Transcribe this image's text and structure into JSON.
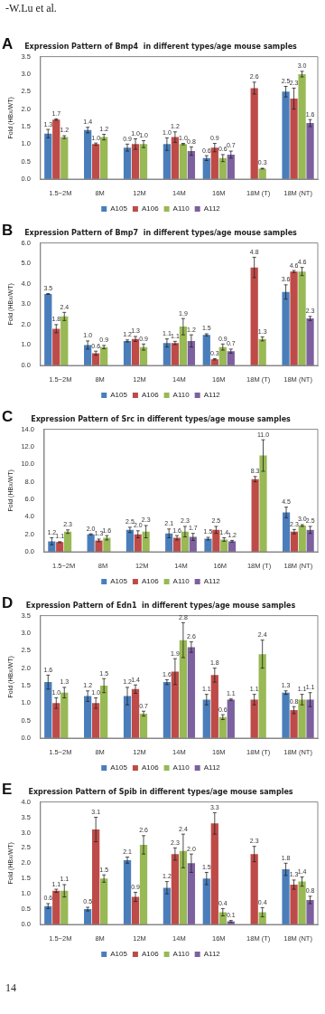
{
  "chart_data": [
    {
      "type": "bar",
      "title": "Expression Pattern of Bmp4  in different types/age mouse samples",
      "ylabel": "Fold (HBx/WT)",
      "annotations": [
        "A",
        "-W.Lu et al."
      ],
      "categories": [
        "1.5~2M",
        "8M",
        "12M",
        "14M",
        "16M",
        "18M (T)",
        "18M (NT)"
      ],
      "legend": "bottom",
      "grid": false,
      "ylim": [
        0,
        3.5
      ],
      "yticks": [
        {
          "value": 0,
          "label": "0.0"
        },
        {
          "value": 0.5,
          "label": "0.5"
        },
        {
          "value": 1,
          "label": "1.0"
        },
        {
          "value": 1.5,
          "label": "1.5"
        },
        {
          "value": 2,
          "label": "2.0"
        },
        {
          "value": 2.5,
          "label": "2.5"
        },
        {
          "value": 3,
          "label": "3.0"
        },
        {
          "value": 3.5,
          "label": "3.5"
        }
      ],
      "series": [
        {
          "name": "A105",
          "color": "#4a7ebb",
          "values": [
            1.3,
            1.4,
            0.9,
            1.0,
            0.6,
            null,
            2.5
          ],
          "errors": [
            0.12,
            0.08,
            0.1,
            0.18,
            0.07,
            null,
            0.15
          ],
          "value_labels": [
            "1.3",
            "1.4",
            "0.9",
            "1.0",
            "0.6",
            null,
            "2.5"
          ]
        },
        {
          "name": "A106",
          "color": "#be4b48",
          "values": [
            1.7,
            1.0,
            1.0,
            1.2,
            0.9,
            2.6,
            2.3
          ],
          "errors": [
            0.02,
            0.03,
            0.15,
            0.15,
            0.12,
            0.17,
            0.3
          ],
          "value_labels": [
            "1.7",
            "1.0",
            "1.0",
            "1.2",
            "0.9",
            "2.6",
            "2.3"
          ]
        },
        {
          "name": "A110",
          "color": "#98b954",
          "values": [
            1.2,
            1.2,
            1.0,
            1.0,
            0.6,
            0.3,
            3.0
          ],
          "errors": [
            0.04,
            0.08,
            0.1,
            0.02,
            0.1,
            0.01,
            0.08
          ],
          "value_labels": [
            "1.2",
            "1.2",
            "1.0",
            "1.0",
            "0.6",
            "0.3",
            "3.0"
          ]
        },
        {
          "name": "A112",
          "color": "#7d60a0",
          "values": [
            null,
            null,
            null,
            0.8,
            0.7,
            null,
            1.6
          ],
          "errors": [
            null,
            null,
            null,
            0.12,
            0.1,
            null,
            0.1
          ],
          "value_labels": [
            null,
            null,
            null,
            "0.8",
            "0.7",
            null,
            "1.6"
          ]
        }
      ]
    },
    {
      "type": "bar",
      "title": "Expression Pattern of Bmp7  in different types/age mouse samples",
      "ylabel": "Fold (HBx/WT)",
      "annotations": [
        "B"
      ],
      "categories": [
        "1.5~2M",
        "8M",
        "12M",
        "14M",
        "16M",
        "18M (T)",
        "18M (NT)"
      ],
      "legend": "bottom",
      "grid": false,
      "ylim": [
        0,
        6
      ],
      "yticks": [
        {
          "value": 0,
          "label": "0.0"
        },
        {
          "value": 1,
          "label": "1.0"
        },
        {
          "value": 2,
          "label": "2.0"
        },
        {
          "value": 3,
          "label": "3.0"
        },
        {
          "value": 4,
          "label": "4.0"
        },
        {
          "value": 5,
          "label": "5.0"
        },
        {
          "value": 6,
          "label": "6.0"
        }
      ],
      "series": [
        {
          "name": "A105",
          "color": "#4a7ebb",
          "values": [
            3.5,
            1.0,
            1.2,
            1.1,
            1.5,
            null,
            3.6
          ],
          "errors": [
            0.02,
            0.2,
            0.05,
            0.2,
            0.05,
            null,
            0.35
          ],
          "value_labels": [
            "3.5",
            "1.0",
            "1.2",
            "1.1",
            "1.5",
            null,
            "3.6"
          ]
        },
        {
          "name": "A106",
          "color": "#be4b48",
          "values": [
            1.8,
            0.6,
            1.3,
            1.1,
            0.3,
            4.8,
            4.6
          ],
          "errors": [
            0.2,
            0.1,
            0.12,
            0.08,
            0.03,
            0.5,
            0.05
          ],
          "value_labels": [
            "1.8",
            "0.6",
            "1.3",
            "1.1",
            "0.3",
            "4.8",
            "4.6"
          ]
        },
        {
          "name": "A110",
          "color": "#98b954",
          "values": [
            2.4,
            0.9,
            0.9,
            1.9,
            0.9,
            1.3,
            4.6
          ],
          "errors": [
            0.2,
            0.08,
            0.15,
            0.4,
            0.15,
            0.1,
            0.2
          ],
          "value_labels": [
            "2.4",
            "0.9",
            "0.9",
            "1.9",
            "0.9",
            "1.3",
            "4.6"
          ]
        },
        {
          "name": "A112",
          "color": "#7d60a0",
          "values": [
            null,
            null,
            null,
            1.2,
            0.7,
            null,
            2.3
          ],
          "errors": [
            null,
            null,
            null,
            0.3,
            0.1,
            null,
            0.1
          ],
          "value_labels": [
            null,
            null,
            null,
            "1.2",
            "0.7",
            null,
            "2.3"
          ]
        }
      ]
    },
    {
      "type": "bar",
      "title": "Expression Pattern of Src in different types/age mouse samples",
      "ylabel": "Fold (HBx/WT)",
      "annotations": [
        "C"
      ],
      "categories": [
        "1.5~2M",
        "8M",
        "12M",
        "14M",
        "16M",
        "18M (T)",
        "18M (NT)"
      ],
      "legend": "bottom",
      "grid": false,
      "ylim": [
        0,
        14
      ],
      "yticks": [
        {
          "value": 0,
          "label": "0.0"
        },
        {
          "value": 2,
          "label": "2.0"
        },
        {
          "value": 4,
          "label": "4.0"
        },
        {
          "value": 6,
          "label": "6.0"
        },
        {
          "value": 8,
          "label": "8.0"
        },
        {
          "value": 10,
          "label": "10.0"
        },
        {
          "value": 12,
          "label": "12.0"
        },
        {
          "value": 14,
          "label": "14.0"
        }
      ],
      "series": [
        {
          "name": "A105",
          "color": "#4a7ebb",
          "values": [
            1.2,
            2.0,
            2.5,
            2.1,
            1.5,
            null,
            4.5
          ],
          "errors": [
            0.4,
            0.05,
            0.3,
            0.5,
            0.15,
            null,
            0.6
          ],
          "value_labels": [
            "1.2",
            "2.0",
            "2.5",
            "2.1",
            "1.5",
            null,
            "4.5"
          ]
        },
        {
          "name": "A106",
          "color": "#be4b48",
          "values": [
            1.1,
            1.3,
            2.0,
            1.6,
            2.5,
            8.3,
            2.3
          ],
          "errors": [
            0.05,
            0.15,
            0.4,
            0.25,
            0.4,
            0.3,
            0.25
          ],
          "value_labels": [
            "1.1",
            "1.3",
            "2.0",
            "1.6",
            "2.5",
            "8.3",
            "2.3"
          ]
        },
        {
          "name": "A110",
          "color": "#98b954",
          "values": [
            2.3,
            1.6,
            2.3,
            2.3,
            1.4,
            11.0,
            3.0
          ],
          "errors": [
            0.2,
            0.25,
            0.7,
            0.6,
            0.2,
            1.8,
            0.1
          ],
          "value_labels": [
            "2.3",
            "1.6",
            "2.3",
            "2.3",
            "1.4",
            "11.0",
            "3.0"
          ]
        },
        {
          "name": "A112",
          "color": "#7d60a0",
          "values": [
            null,
            null,
            null,
            1.7,
            1.2,
            null,
            2.5
          ],
          "errors": [
            null,
            null,
            null,
            0.4,
            0.1,
            null,
            0.4
          ],
          "value_labels": [
            null,
            null,
            null,
            "1.7",
            "1.2",
            null,
            "2.5"
          ]
        }
      ]
    },
    {
      "type": "bar",
      "title": "Expression Pattern of Edn1  in different types/age mouse samples",
      "ylabel": "Fold (HBx/WT)",
      "annotations": [
        "D"
      ],
      "categories": [
        "1.5~2M",
        "8M",
        "12M",
        "14M",
        "16M",
        "18M (T)",
        "18M (NT)"
      ],
      "legend": "bottom",
      "grid": false,
      "ylim": [
        0,
        3.5
      ],
      "yticks": [
        {
          "value": 0,
          "label": "0.0"
        },
        {
          "value": 0.5,
          "label": "0.5"
        },
        {
          "value": 1,
          "label": "1.0"
        },
        {
          "value": 1.5,
          "label": "1.5"
        },
        {
          "value": 2,
          "label": "2.0"
        },
        {
          "value": 2.5,
          "label": "2.5"
        },
        {
          "value": 3,
          "label": "3.0"
        },
        {
          "value": 3.5,
          "label": "3.5"
        }
      ],
      "series": [
        {
          "name": "A105",
          "color": "#4a7ebb",
          "values": [
            1.6,
            1.2,
            1.2,
            1.6,
            1.1,
            null,
            1.3
          ],
          "errors": [
            0.2,
            0.15,
            0.25,
            0.07,
            0.15,
            null,
            0.05
          ],
          "value_labels": [
            "1.6",
            "1.2",
            "1.2",
            "1.6",
            "1.1",
            null,
            "1.3"
          ]
        },
        {
          "name": "A106",
          "color": "#be4b48",
          "values": [
            1.0,
            1.0,
            1.4,
            1.9,
            1.8,
            1.1,
            0.8
          ],
          "errors": [
            0.15,
            0.15,
            0.12,
            0.37,
            0.2,
            0.15,
            0.1
          ],
          "value_labels": [
            "1.0",
            "1.0",
            "1.4",
            "1.9",
            "1.8",
            "1.1",
            "0.8"
          ]
        },
        {
          "name": "A110",
          "color": "#98b954",
          "values": [
            1.3,
            1.5,
            0.7,
            2.8,
            0.6,
            2.4,
            1.1
          ],
          "errors": [
            0.15,
            0.2,
            0.07,
            0.5,
            0.07,
            0.4,
            0.15
          ],
          "value_labels": [
            "1.3",
            "1.5",
            "0.7",
            "2.8",
            "0.6",
            "2.4",
            "1.1"
          ]
        },
        {
          "name": "A112",
          "color": "#7d60a0",
          "values": [
            null,
            null,
            null,
            2.6,
            1.1,
            null,
            1.1
          ],
          "errors": [
            null,
            null,
            null,
            0.15,
            0.02,
            null,
            0.2
          ],
          "value_labels": [
            null,
            null,
            null,
            "2.6",
            "1.1",
            null,
            "1.1"
          ]
        }
      ]
    },
    {
      "type": "bar",
      "title": "Expression Pattern of Spib in different types/age mouse samples",
      "ylabel": "Fold (HBx/WT)",
      "annotations": [
        "E",
        "14"
      ],
      "categories": [
        "1.5~2M",
        "8M",
        "12M",
        "14M",
        "16M",
        "18M (T)",
        "18M (NT)"
      ],
      "legend": "bottom",
      "grid": false,
      "ylim": [
        0,
        4
      ],
      "yticks": [
        {
          "value": 0,
          "label": "0.0"
        },
        {
          "value": 0.5,
          "label": "0.5"
        },
        {
          "value": 1,
          "label": "1.0"
        },
        {
          "value": 1.5,
          "label": "1.5"
        },
        {
          "value": 2,
          "label": "2.0"
        },
        {
          "value": 2.5,
          "label": "2.5"
        },
        {
          "value": 3,
          "label": "3.0"
        },
        {
          "value": 3.5,
          "label": "3.5"
        },
        {
          "value": 4,
          "label": "4.0"
        }
      ],
      "series": [
        {
          "name": "A105",
          "color": "#4a7ebb",
          "values": [
            0.6,
            0.5,
            2.1,
            1.2,
            1.5,
            null,
            1.8
          ],
          "errors": [
            0.08,
            0.06,
            0.1,
            0.2,
            0.2,
            null,
            0.2
          ],
          "value_labels": [
            "0.6",
            "0.5",
            "2.1",
            "1.2",
            "1.5",
            null,
            "1.8"
          ]
        },
        {
          "name": "A106",
          "color": "#be4b48",
          "values": [
            1.1,
            3.1,
            0.9,
            2.3,
            3.3,
            2.3,
            1.3
          ],
          "errors": [
            0.05,
            0.4,
            0.15,
            0.2,
            0.35,
            0.25,
            0.15
          ],
          "value_labels": [
            "1.1",
            "3.1",
            "0.9",
            "2.3",
            "3.3",
            "2.3",
            "1.3"
          ]
        },
        {
          "name": "A110",
          "color": "#98b954",
          "values": [
            1.1,
            1.5,
            2.6,
            2.4,
            0.4,
            0.4,
            1.4
          ],
          "errors": [
            0.2,
            0.12,
            0.3,
            0.55,
            0.12,
            0.15,
            0.15
          ],
          "value_labels": [
            "1.1",
            "1.5",
            "2.6",
            "2.4",
            "0.4",
            "0.4",
            "1.4"
          ]
        },
        {
          "name": "A112",
          "color": "#7d60a0",
          "values": [
            null,
            null,
            null,
            2.0,
            0.1,
            null,
            0.8
          ],
          "errors": [
            null,
            null,
            null,
            0.3,
            0.03,
            null,
            0.12
          ],
          "value_labels": [
            null,
            null,
            null,
            "2.0",
            "0.1",
            null,
            "0.8"
          ]
        }
      ]
    }
  ]
}
